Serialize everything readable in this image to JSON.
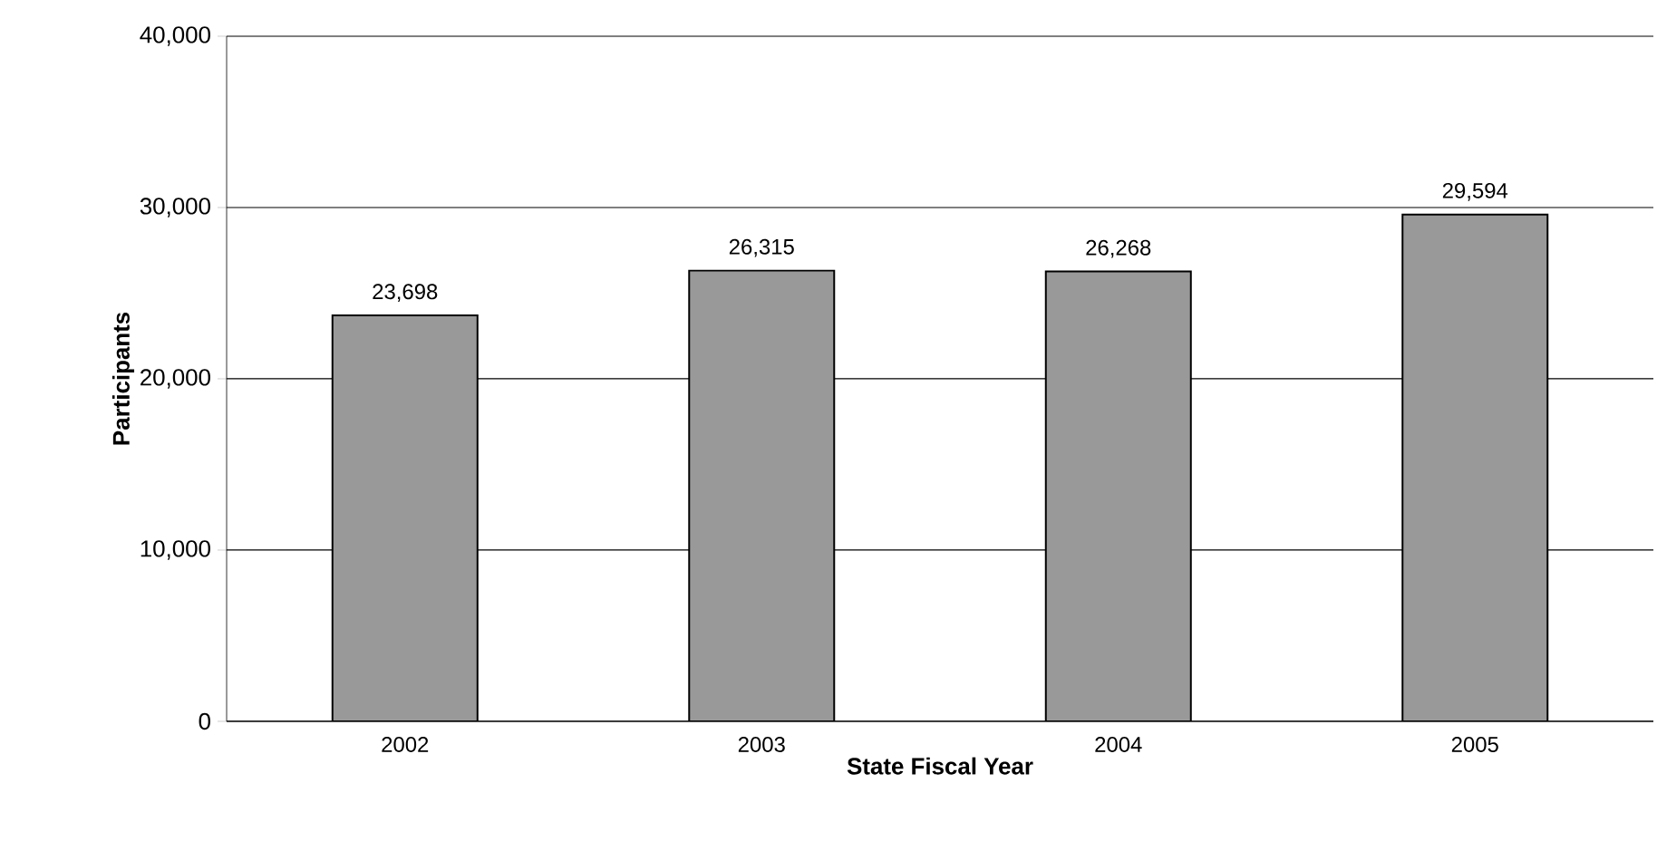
{
  "chart_data": {
    "type": "bar",
    "xlabel": "State Fiscal Year",
    "ylabel": "Participants",
    "categories": [
      "2002",
      "2003",
      "2004",
      "2005"
    ],
    "values": [
      23698,
      26315,
      26268,
      29594
    ],
    "color": "#999999",
    "ylim": [
      0,
      40000
    ],
    "yticks": [
      {
        "value": 0,
        "label": "0"
      },
      {
        "value": 10000,
        "label": "10,000"
      },
      {
        "value": 20000,
        "label": "20,000"
      },
      {
        "value": 30000,
        "label": "30,000"
      },
      {
        "value": 40000,
        "label": "40,000"
      }
    ],
    "value_labels": [
      "23,698",
      "26,315",
      "26,268",
      "29,594"
    ],
    "grid": "y"
  }
}
